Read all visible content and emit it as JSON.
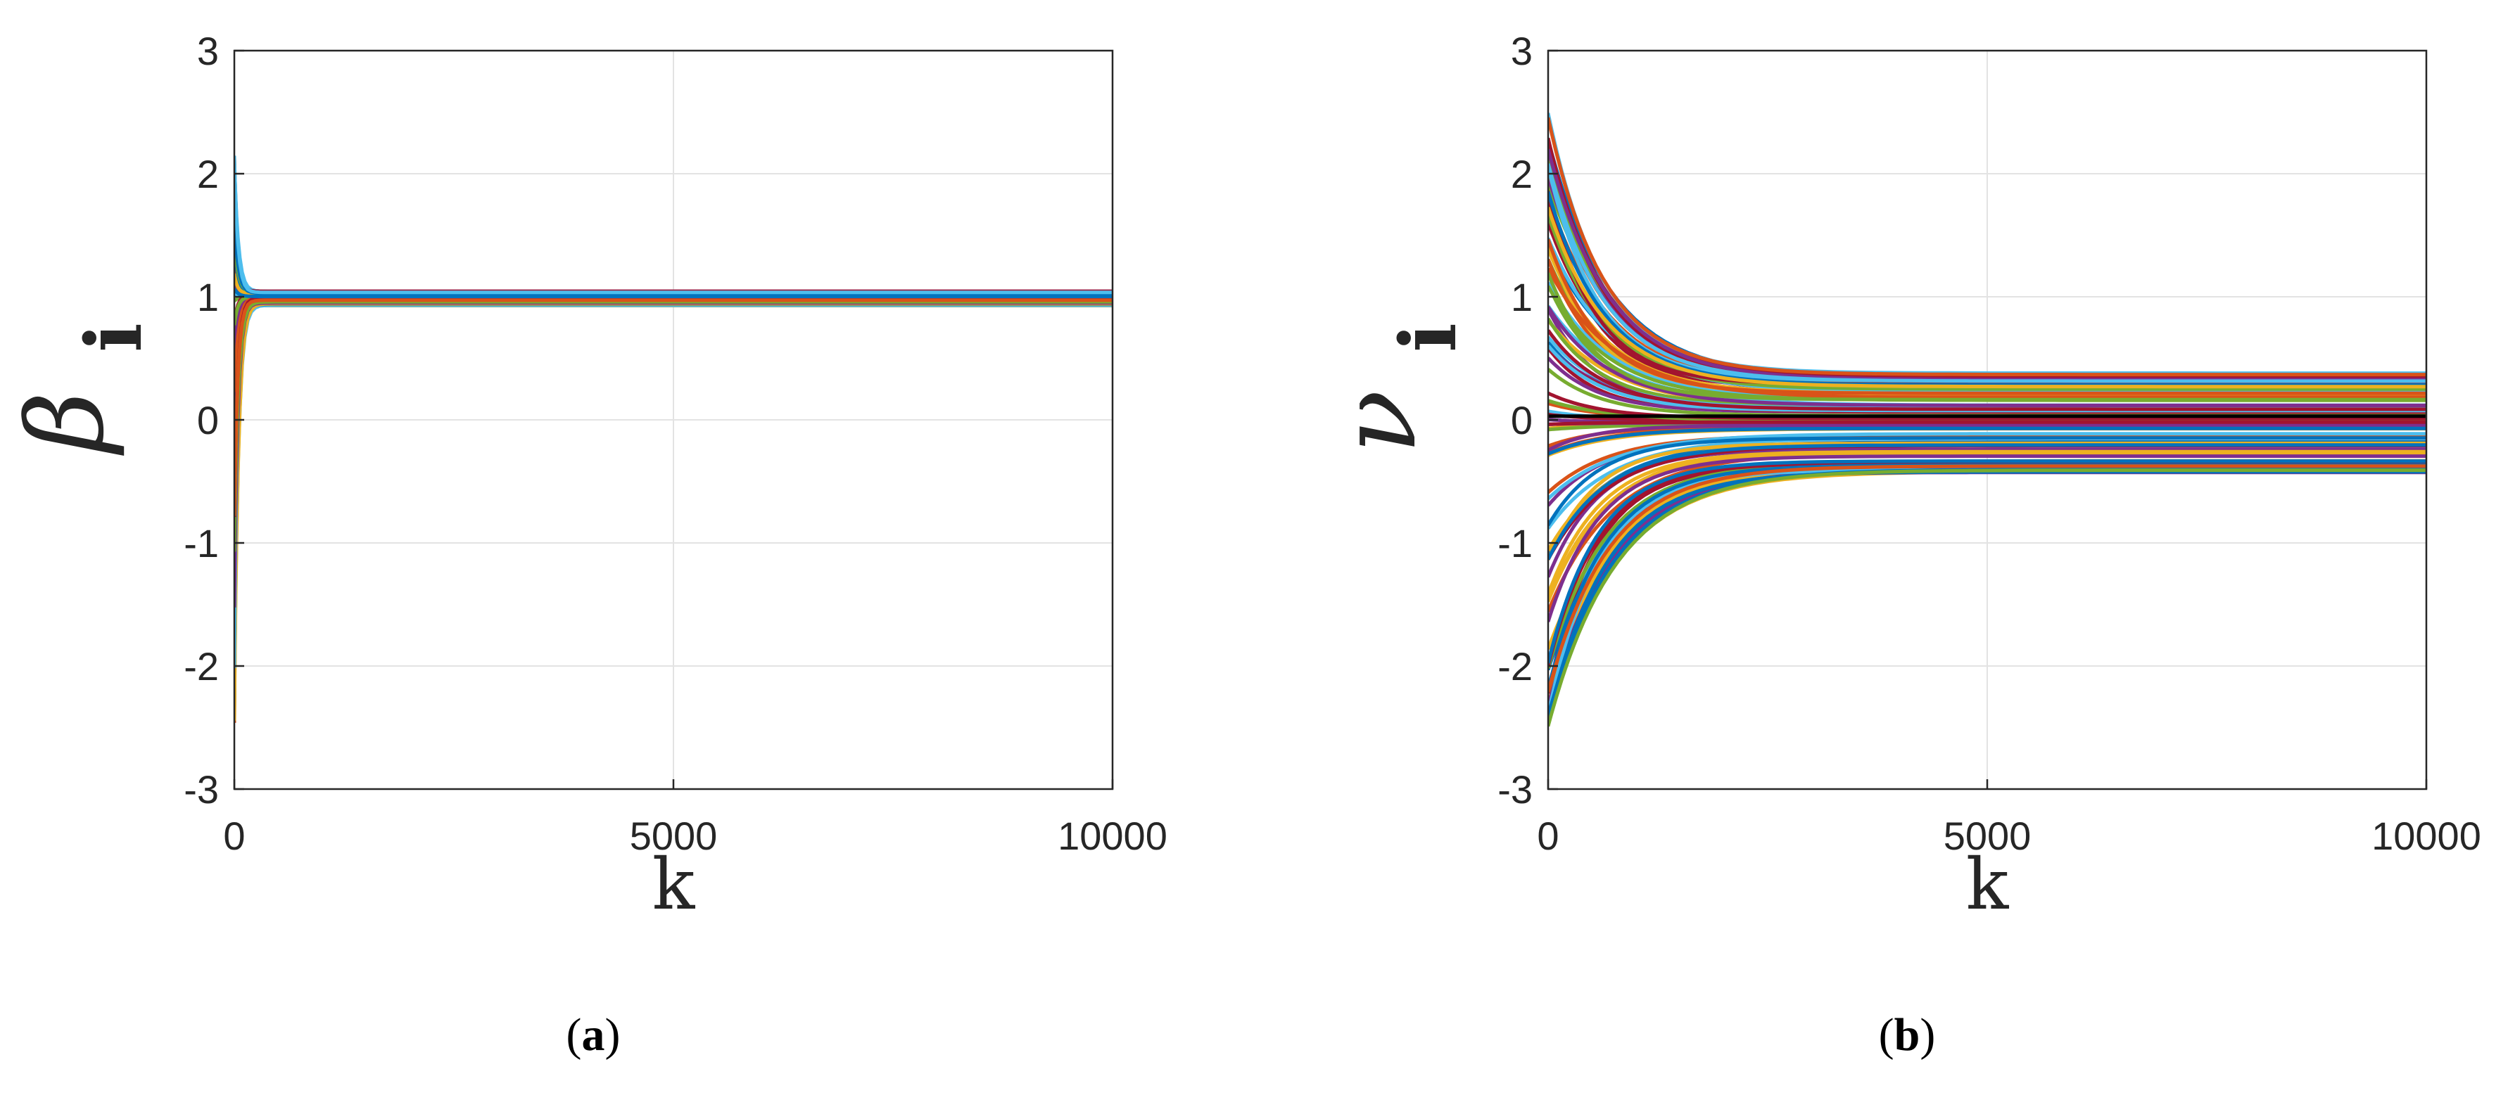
{
  "colors": {
    "palette": [
      "#0072BD",
      "#D95319",
      "#EDB120",
      "#7E2F8E",
      "#77AC30",
      "#4DBEEE",
      "#A2142F"
    ],
    "grid": "#e3e3e3",
    "axis": "#262626"
  },
  "chart_data": [
    {
      "type": "line",
      "panel_label": "a",
      "ylabel_symbol": "β",
      "ylabel_subscript": "i",
      "xlabel": "k",
      "xlim": [
        0,
        10000
      ],
      "ylim": [
        -3,
        3
      ],
      "xticks": [
        0,
        5000,
        10000
      ],
      "yticks": [
        -3,
        -2,
        -1,
        0,
        1,
        2,
        3
      ],
      "grid": true,
      "series_count": 100,
      "initial_range": [
        -2.5,
        2.2
      ],
      "final_range": [
        0.94,
        1.04
      ],
      "decay_k": 40,
      "legend": "none"
    },
    {
      "type": "line",
      "panel_label": "b",
      "ylabel_symbol": "ν",
      "ylabel_subscript": "i",
      "xlabel": "k",
      "xlim": [
        0,
        10000
      ],
      "ylim": [
        -3,
        3
      ],
      "xticks": [
        0,
        5000,
        10000
      ],
      "yticks": [
        -3,
        -2,
        -1,
        0,
        1,
        2,
        3
      ],
      "grid": true,
      "series_count": 100,
      "initial_range": [
        -2.5,
        2.5
      ],
      "final_range": [
        -0.42,
        0.38
      ],
      "decay_k": 650,
      "legend": "none"
    }
  ]
}
